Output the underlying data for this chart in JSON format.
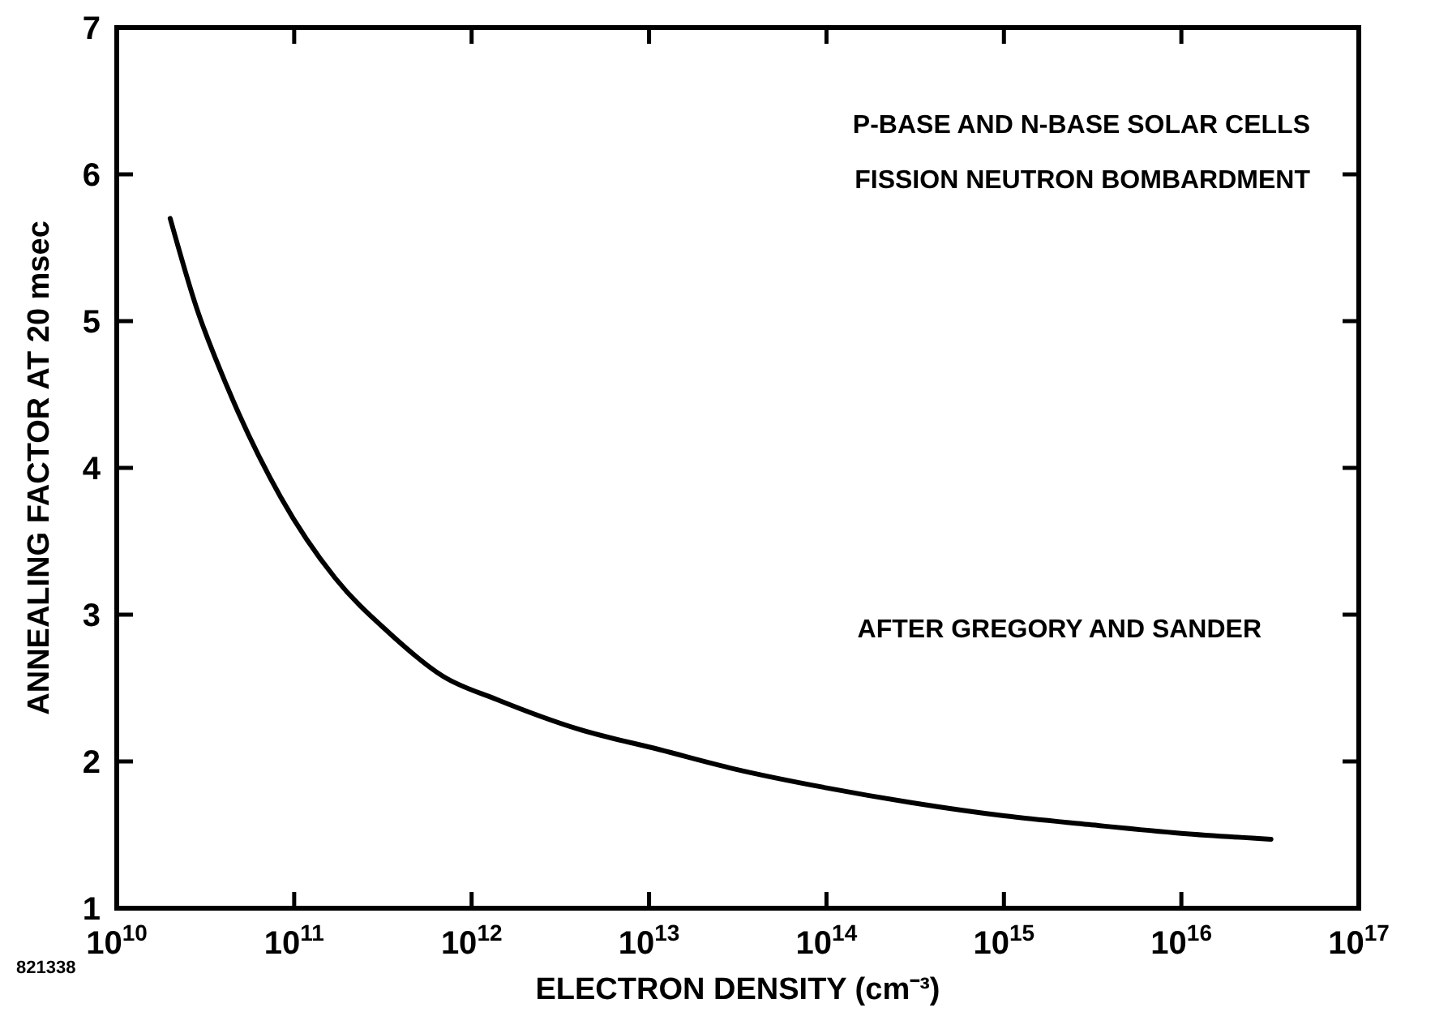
{
  "chart_data": {
    "type": "line",
    "xlabel": "ELECTRON DENSITY (cm⁻³)",
    "ylabel": "ANNEALING FACTOR AT 20 msec",
    "log": "x",
    "xlim": [
      10000000000.0,
      1e+17
    ],
    "ylim": [
      1,
      7
    ],
    "xticks": [
      {
        "value": 10000000000.0,
        "label": "10$^{10}$"
      },
      {
        "value": 100000000000.0,
        "label": "10$^{11}$"
      },
      {
        "value": 1000000000000.0,
        "label": "10$^{12}$"
      },
      {
        "value": 10000000000000.0,
        "label": "10$^{13}$"
      },
      {
        "value": 100000000000000.0,
        "label": "10$^{14}$"
      },
      {
        "value": 1000000000000000.0,
        "label": "10$^{15}$"
      },
      {
        "value": 1e+16,
        "label": "10$^{16}$"
      },
      {
        "value": 1e+17,
        "label": "10$^{17}$"
      }
    ],
    "yticks": [
      1,
      2,
      3,
      4,
      5,
      6,
      7
    ],
    "series": [
      {
        "color": "#000000",
        "x": [
          20000000000.0,
          28000000000.0,
          42000000000.0,
          84000000000.0,
          170000000000.0,
          340000000000.0,
          690000000000.0,
          1400000000000.0,
          4000000000000.0,
          11500000000000.0,
          30000000000000.0,
          100000000000000.0,
          300000000000000.0,
          1000000000000000.0,
          3000000000000000.0,
          1e+16,
          3.2e+16
        ],
        "values": [
          5.7,
          5.1,
          4.55,
          3.8,
          3.25,
          2.88,
          2.58,
          2.42,
          2.22,
          2.08,
          1.95,
          1.82,
          1.72,
          1.63,
          1.57,
          1.51,
          1.47
        ]
      }
    ],
    "annotations": [
      "P-BASE AND N-BASE SOLAR CELLS",
      "FISSION NEUTRON BOMBARDMENT",
      "AFTER GREGORY AND SANDER",
      "821338"
    ],
    "marker": "none",
    "line_style": "solid"
  }
}
